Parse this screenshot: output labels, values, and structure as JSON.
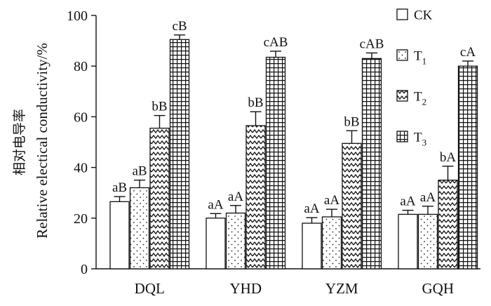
{
  "chart_data": {
    "type": "bar",
    "categories": [
      "DQL",
      "YHD",
      "YZM",
      "GQH"
    ],
    "series": [
      {
        "name": "CK",
        "values": [
          26.5,
          20.0,
          18.0,
          21.5
        ],
        "errors": [
          2.0,
          1.8,
          2.2,
          1.6
        ],
        "labels": [
          "aB",
          "aA",
          "aA",
          "aA"
        ],
        "pattern": "white"
      },
      {
        "name": "T",
        "sub": "1",
        "values": [
          32.0,
          22.0,
          20.5,
          21.5
        ],
        "errors": [
          3.0,
          3.0,
          3.0,
          3.2
        ],
        "labels": [
          "aB",
          "aA",
          "aA",
          "aA"
        ],
        "pattern": "dots"
      },
      {
        "name": "T",
        "sub": "2",
        "values": [
          55.5,
          56.5,
          49.5,
          35.0
        ],
        "errors": [
          5.0,
          5.5,
          5.0,
          5.5
        ],
        "labels": [
          "bB",
          "bB",
          "bB",
          "bA"
        ],
        "pattern": "wave"
      },
      {
        "name": "T",
        "sub": "3",
        "values": [
          90.5,
          83.5,
          83.0,
          80.0
        ],
        "errors": [
          1.8,
          2.4,
          2.2,
          2.0
        ],
        "labels": [
          "cB",
          "cAB",
          "cAB",
          "cA"
        ],
        "pattern": "grid"
      }
    ],
    "ylim": [
      0,
      100
    ],
    "yticks": [
      0,
      20,
      40,
      60,
      80,
      100
    ],
    "ylabel_zh": "相对电导率",
    "ylabel": "Relative electical conductivity/%",
    "xlabel": "",
    "legend_position": "top-right",
    "grid": false
  }
}
